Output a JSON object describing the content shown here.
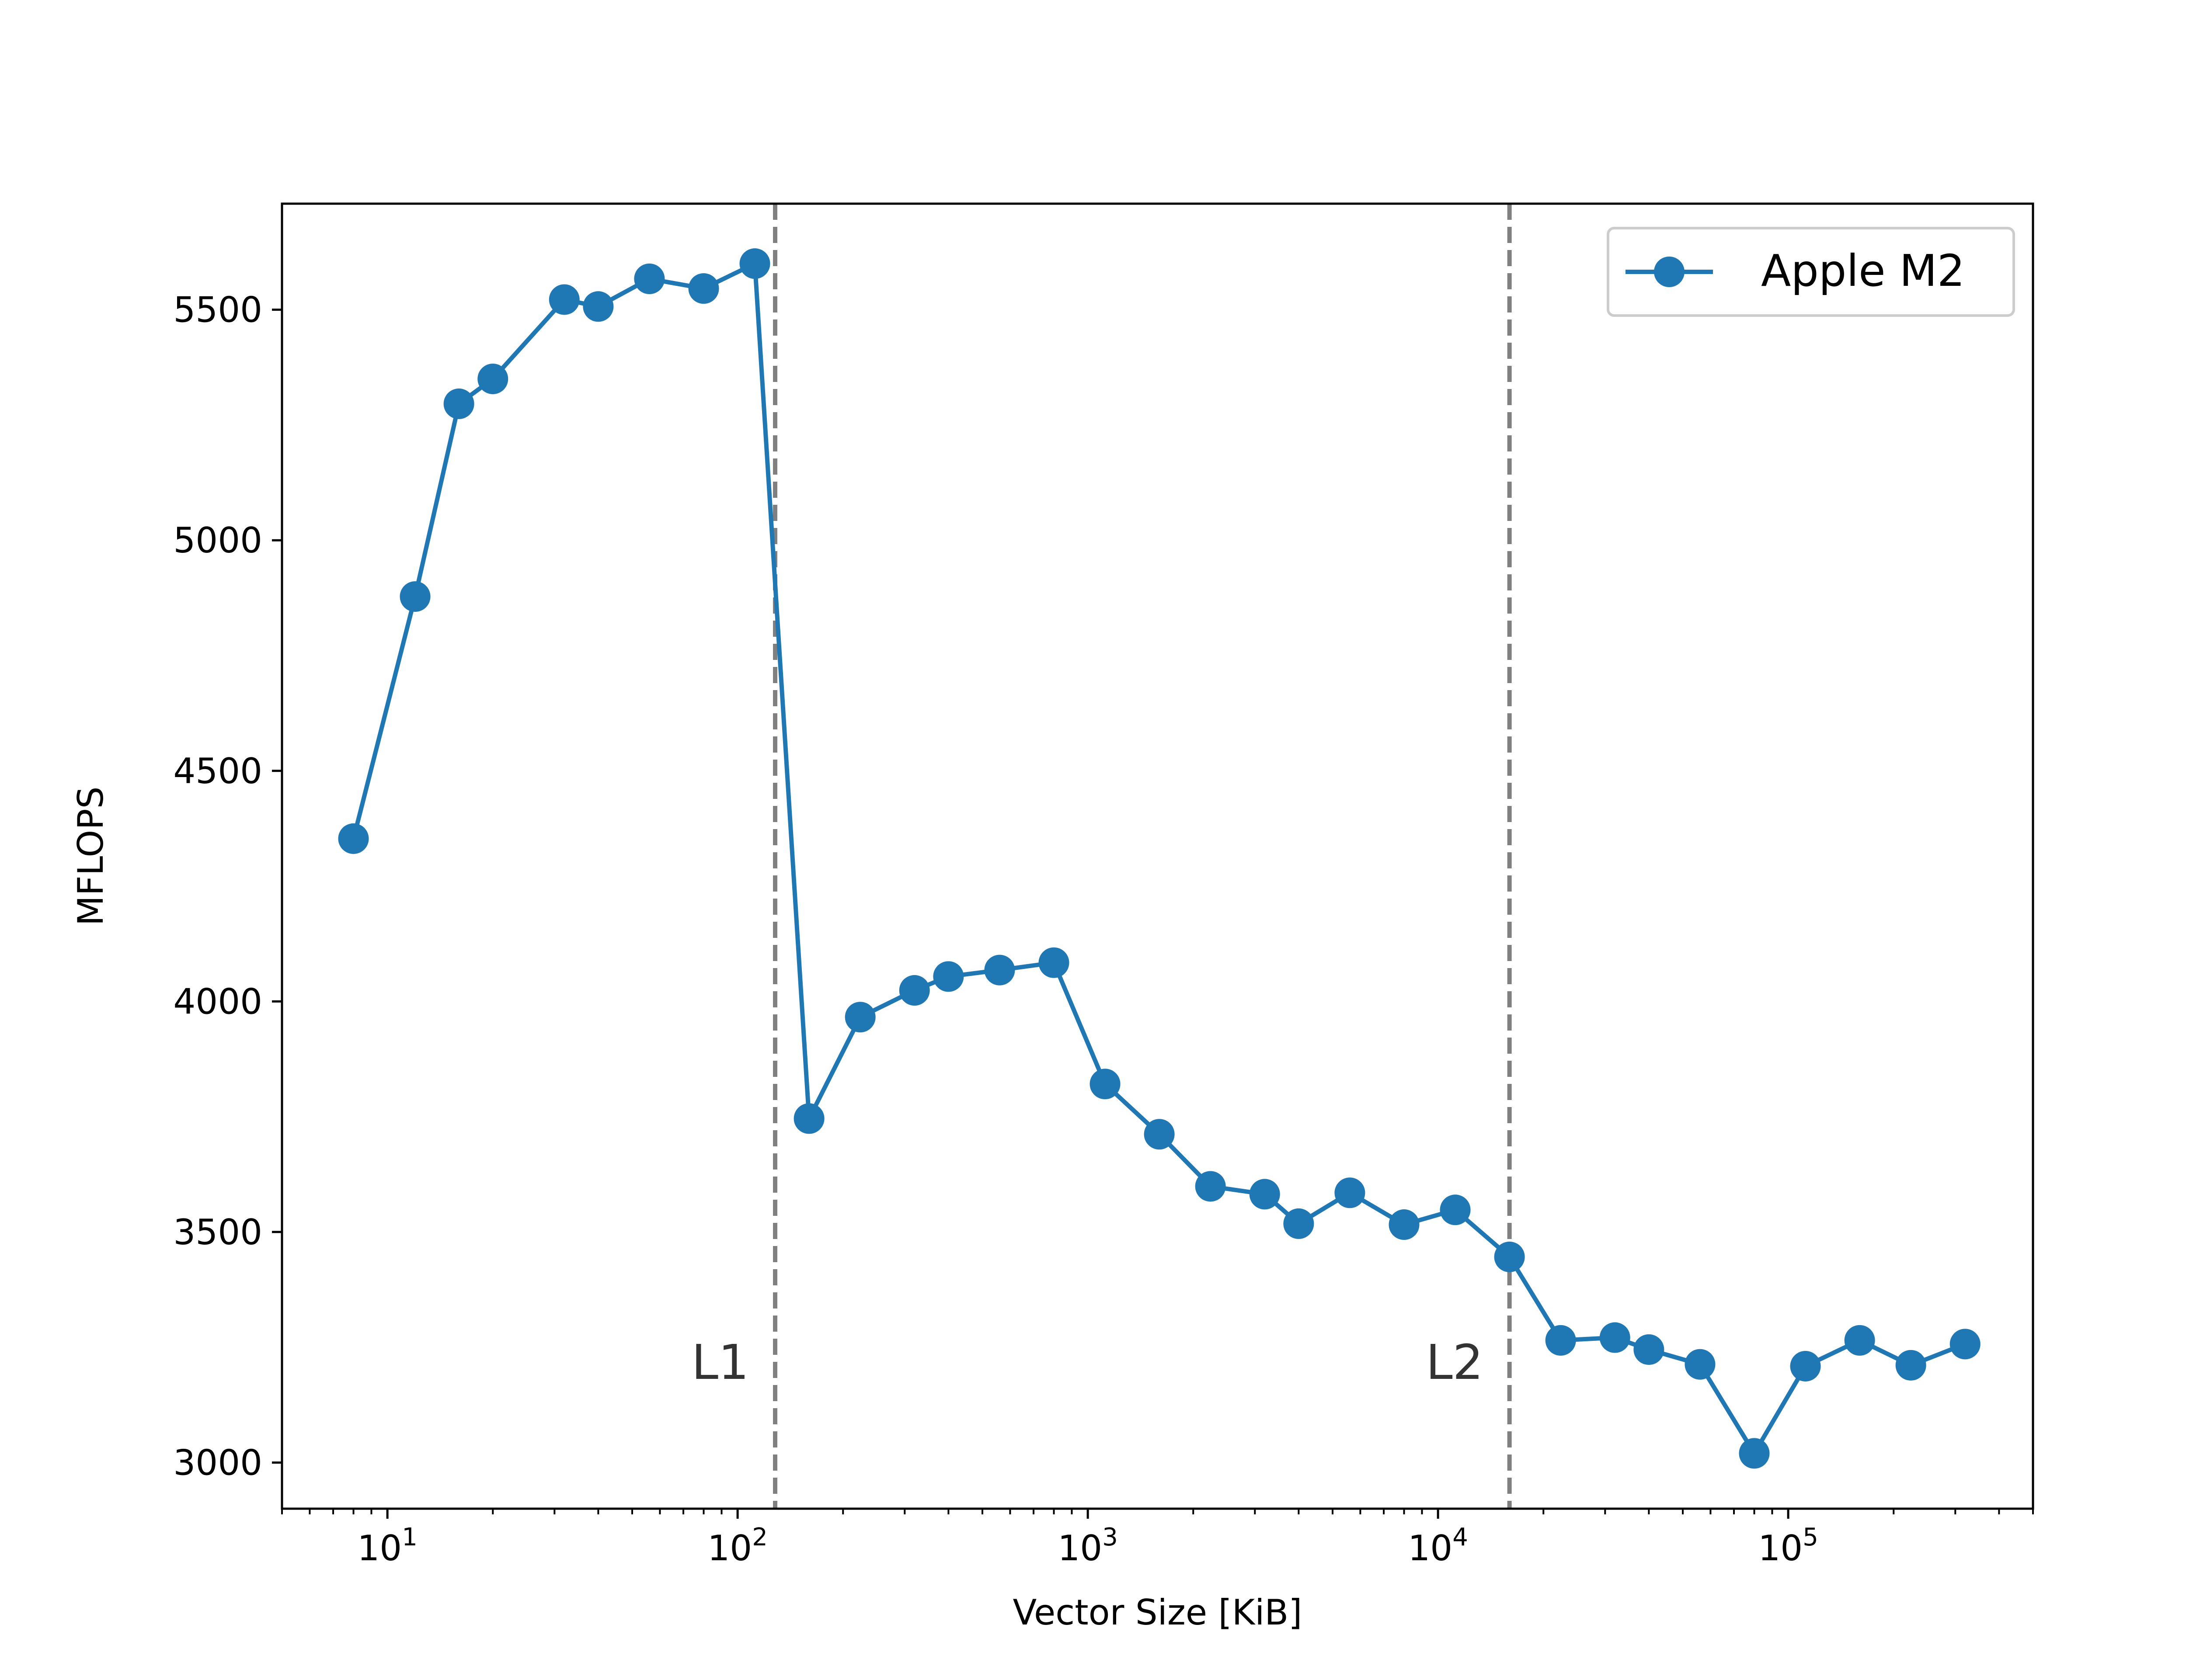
{
  "chart_data": {
    "type": "line",
    "title": "",
    "xlabel": "Vector Size [KiB]",
    "ylabel": "MFLOPS",
    "xscale": "log",
    "xlim": [
      5,
      500000
    ],
    "ylim": [
      2900,
      5730
    ],
    "grid": false,
    "legend_position": "top-right",
    "x_tick_labels": [
      {
        "value": 10,
        "base": "10",
        "exp": "1"
      },
      {
        "value": 100,
        "base": "10",
        "exp": "2"
      },
      {
        "value": 1000,
        "base": "10",
        "exp": "3"
      },
      {
        "value": 10000,
        "base": "10",
        "exp": "4"
      },
      {
        "value": 100000,
        "base": "10",
        "exp": "5"
      }
    ],
    "y_ticks": [
      3000,
      3500,
      4000,
      4500,
      5000,
      5500
    ],
    "vlines": [
      {
        "x": 128,
        "label": "L1",
        "color": "#808080"
      },
      {
        "x": 16000,
        "label": "L2",
        "color": "#808080"
      }
    ],
    "series": [
      {
        "name": "Apple M2",
        "color": "#1f77b4",
        "marker": "circle",
        "points": [
          [
            8,
            4353
          ],
          [
            12,
            4878
          ],
          [
            16,
            5296
          ],
          [
            20,
            5350
          ],
          [
            32,
            5522
          ],
          [
            40,
            5507
          ],
          [
            56,
            5567
          ],
          [
            80,
            5546
          ],
          [
            112,
            5600
          ],
          [
            160,
            3746
          ],
          [
            224,
            3966
          ],
          [
            320,
            4024
          ],
          [
            400,
            4054
          ],
          [
            560,
            4068
          ],
          [
            800,
            4084
          ],
          [
            1120,
            3821
          ],
          [
            1600,
            3712
          ],
          [
            2240,
            3599
          ],
          [
            3200,
            3582
          ],
          [
            4000,
            3518
          ],
          [
            5600,
            3585
          ],
          [
            8000,
            3516
          ],
          [
            11200,
            3548
          ],
          [
            16000,
            3446
          ],
          [
            22400,
            3265
          ],
          [
            32000,
            3271
          ],
          [
            40000,
            3245
          ],
          [
            56000,
            3213
          ],
          [
            80000,
            3020
          ],
          [
            112000,
            3209
          ],
          [
            160000,
            3265
          ],
          [
            224000,
            3211
          ],
          [
            320000,
            3257
          ]
        ]
      }
    ]
  }
}
